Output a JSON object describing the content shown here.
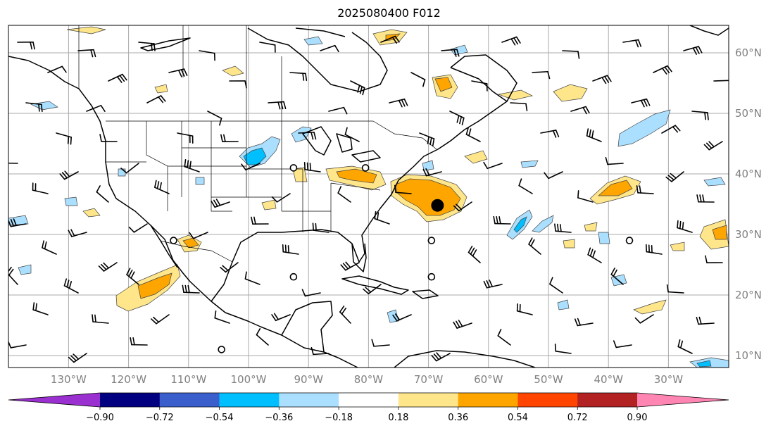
{
  "title": "2025080400 F012",
  "longitude_labels": [
    "130°W",
    "120°W",
    "110°W",
    "100°W",
    "90°W",
    "80°W",
    "70°W",
    "60°W",
    "50°W",
    "40°W",
    "30°W"
  ],
  "latitude_labels": [
    "60°N",
    "50°N",
    "40°N",
    "30°N",
    "20°N",
    "10°N"
  ],
  "colorbar": {
    "ticks": [
      "−0.90",
      "−0.72",
      "−0.54",
      "−0.36",
      "−0.18",
      "0.18",
      "0.36",
      "0.54",
      "0.72",
      "0.90"
    ],
    "colors": [
      "#9b30d0",
      "#000080",
      "#3a5fcd",
      "#00bfff",
      "#aadfff",
      "#ffffff",
      "#ffe68a",
      "#ffa500",
      "#ff4500",
      "#b22222",
      "#ff85b3"
    ]
  },
  "symbols": {
    "storm_center": {
      "lon": -68.5,
      "lat": 34.8
    },
    "calm_circles": [
      {
        "lon": -92.5,
        "lat": 41.0
      },
      {
        "lon": -80.5,
        "lat": 41.0
      },
      {
        "lon": -112.5,
        "lat": 29.0
      },
      {
        "lon": -69.5,
        "lat": 29.0
      },
      {
        "lon": -36.5,
        "lat": 29.0
      },
      {
        "lon": -92.5,
        "lat": 23.0
      },
      {
        "lon": -69.5,
        "lat": 23.0
      },
      {
        "lon": -104.5,
        "lat": 11.0
      }
    ]
  }
}
